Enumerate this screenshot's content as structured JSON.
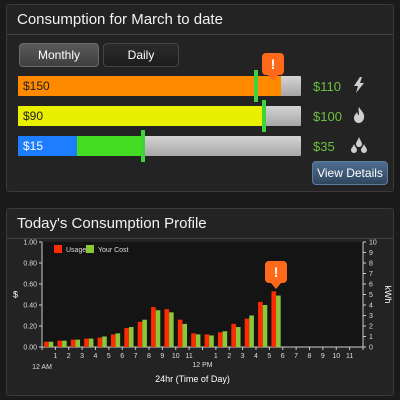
{
  "monthly_panel": {
    "title": "Consumption for March to date",
    "tabs": [
      "Monthly",
      "Daily"
    ],
    "active_tab": "Monthly",
    "rows": [
      {
        "label": "$150",
        "value": "$110",
        "icon": "lightning-icon",
        "color": "#ff8a00",
        "fill_fraction": 0.93,
        "marker_fraction": 0.84,
        "alert": true
      },
      {
        "label": "$90",
        "value": "$100",
        "icon": "flame-icon",
        "color": "#e8f000",
        "fill_fraction": 0.87,
        "marker_fraction": 0.87,
        "alert": false
      },
      {
        "label": "$15",
        "value": "$35",
        "icon": "water-drops-icon",
        "color": "#1e7cff",
        "second_color": "#44dd22",
        "fill_fraction": 0.21,
        "second_fraction": 0.44,
        "marker_fraction": 0.44,
        "alert": false
      }
    ],
    "details_label": "View Details",
    "alert_symbol": "!"
  },
  "profile_panel": {
    "title": "Today's Consumption Profile",
    "alert_symbol": "!"
  },
  "chart_data": {
    "type": "bar",
    "x_tick_labels": [
      "1",
      "2",
      "3",
      "4",
      "5",
      "6",
      "7",
      "8",
      "9",
      "10",
      "11",
      "12 PM",
      "1",
      "2",
      "3",
      "4",
      "5",
      "6",
      "7",
      "8",
      "9",
      "10",
      "11"
    ],
    "x_sub_labels": {
      "start": "12 AM"
    },
    "xlabel": "24hr (Time of Day)",
    "ylabel_left": "$",
    "ylabel_right": "kWh",
    "ylim_left": [
      0,
      1.0
    ],
    "ylim_right": [
      0,
      10
    ],
    "y_ticks_left": [
      "0.00",
      "0.20",
      "0.40",
      "0.60",
      "0.80",
      "1.00"
    ],
    "y_ticks_right": [
      "0",
      "1",
      "2",
      "3",
      "4",
      "5",
      "6",
      "7",
      "8",
      "9",
      "10"
    ],
    "legend": [
      "Usage",
      "Your Cost"
    ],
    "legend_position": "top-left",
    "series": [
      {
        "name": "Usage",
        "color": "#ff2a00",
        "values": [
          0.05,
          0.06,
          0.07,
          0.08,
          0.09,
          0.12,
          0.18,
          0.24,
          0.38,
          0.36,
          0.26,
          0.13,
          0.12,
          0.14,
          0.22,
          0.27,
          0.43,
          0.53
        ]
      },
      {
        "name": "Your Cost",
        "color": "#8ac83a",
        "values": [
          0.05,
          0.06,
          0.07,
          0.08,
          0.1,
          0.13,
          0.19,
          0.26,
          0.35,
          0.33,
          0.22,
          0.12,
          0.11,
          0.15,
          0.19,
          0.3,
          0.4,
          0.49
        ]
      }
    ],
    "alert_hour_index": 17
  }
}
